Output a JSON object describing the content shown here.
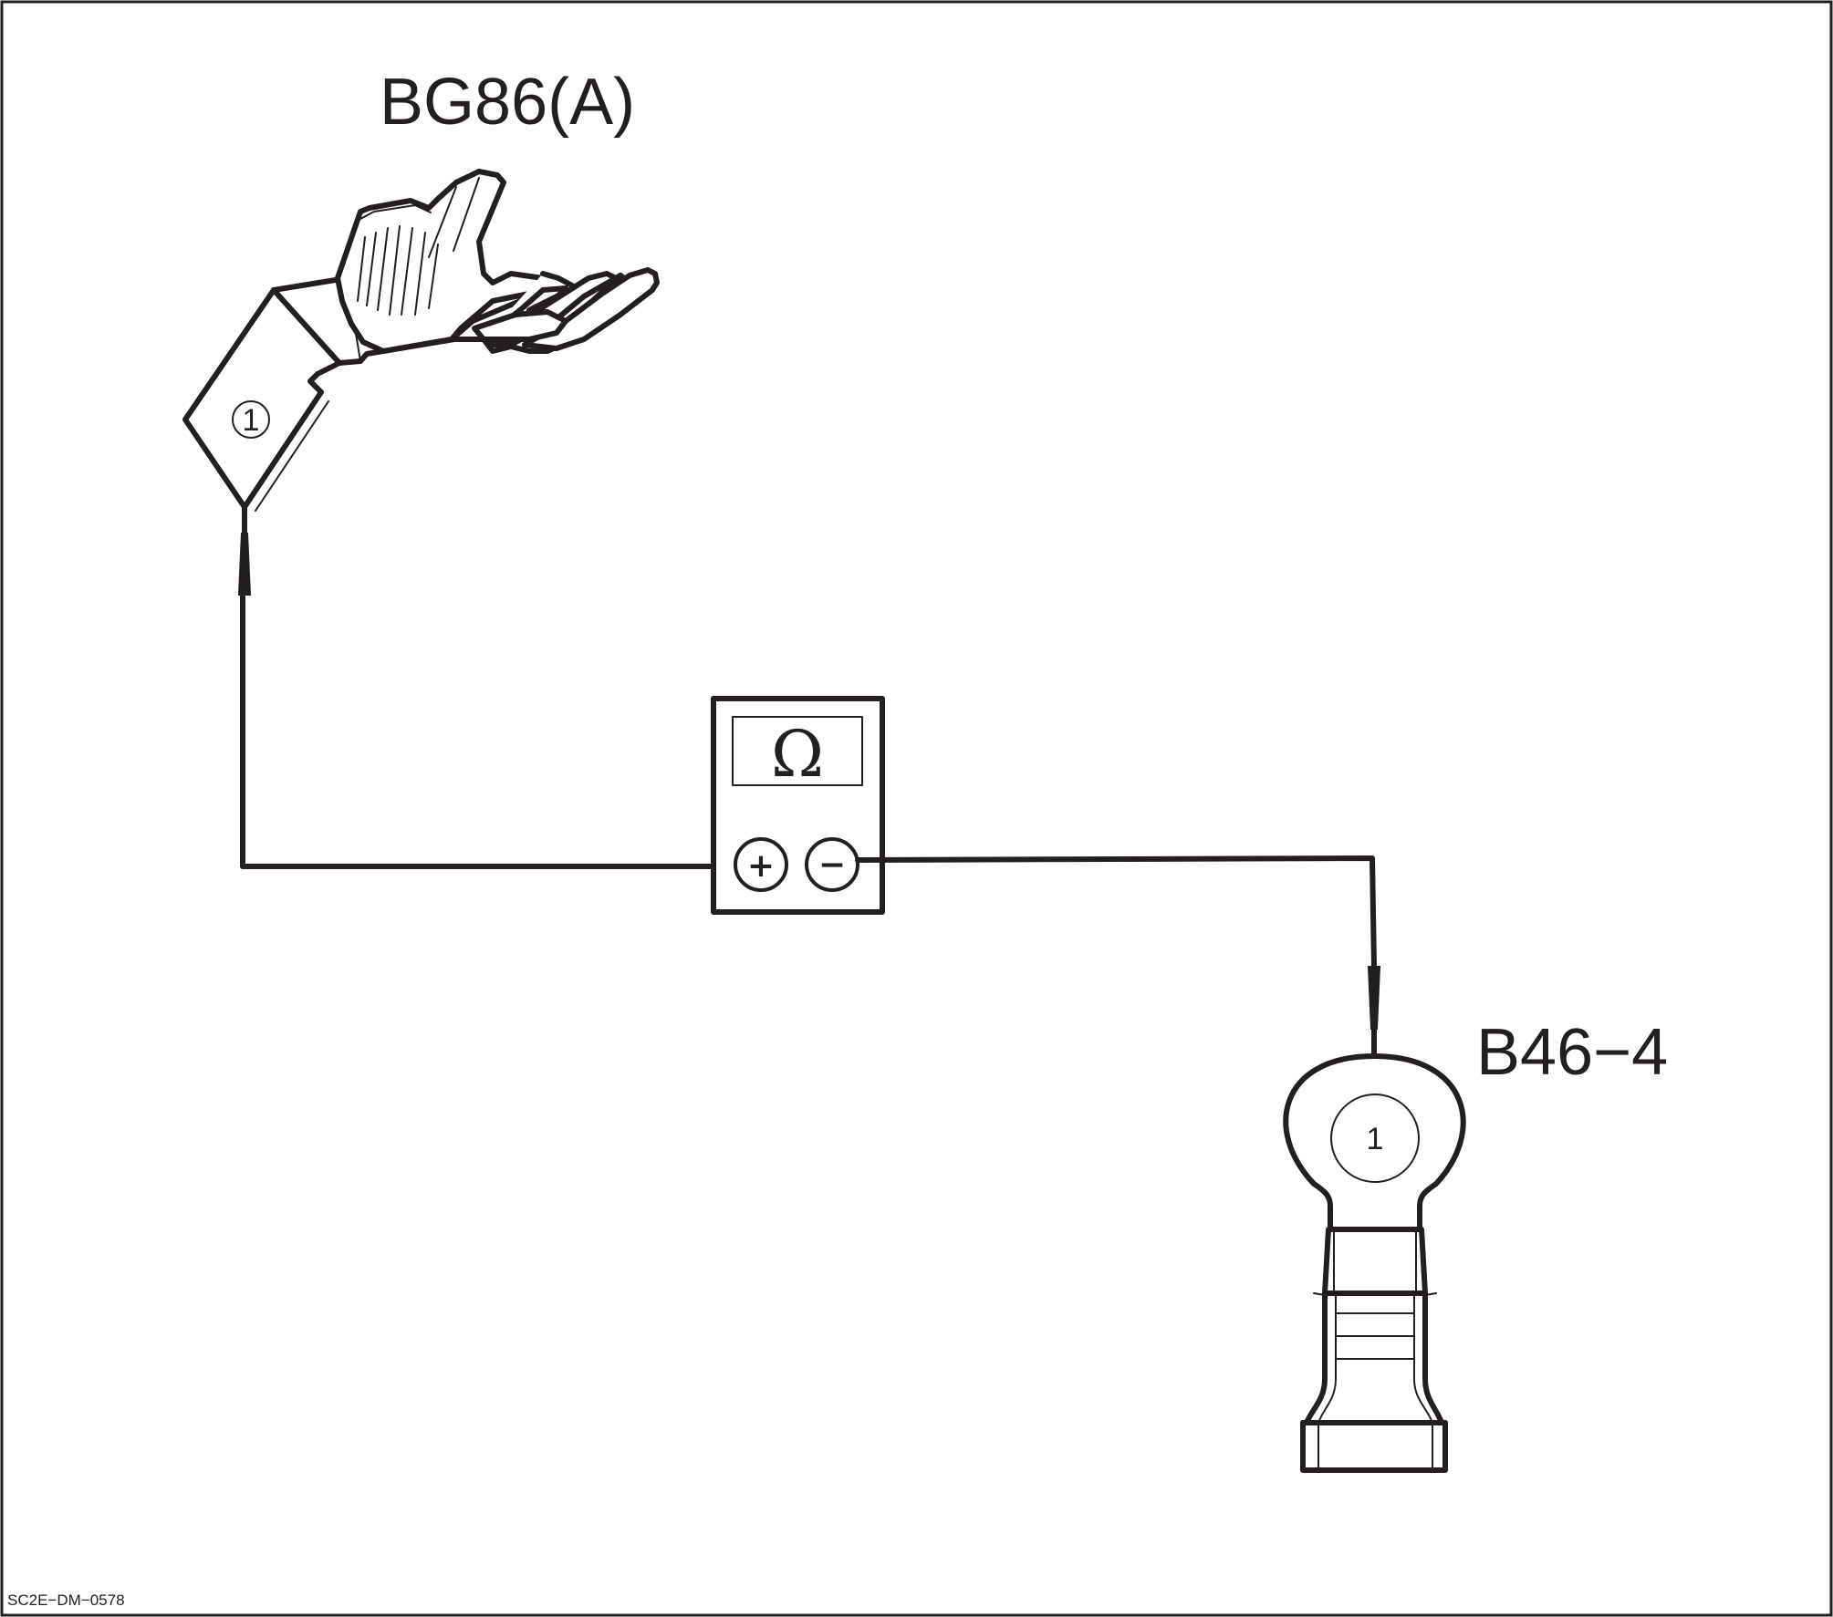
{
  "connector_a": {
    "label": "BG86(A)",
    "pin": "1"
  },
  "connector_b": {
    "label": "B46−4",
    "pin": "1"
  },
  "meter": {
    "symbol": "Ω",
    "positive": "+",
    "negative": "−"
  },
  "figure_code": "SC2E−DM−0578"
}
